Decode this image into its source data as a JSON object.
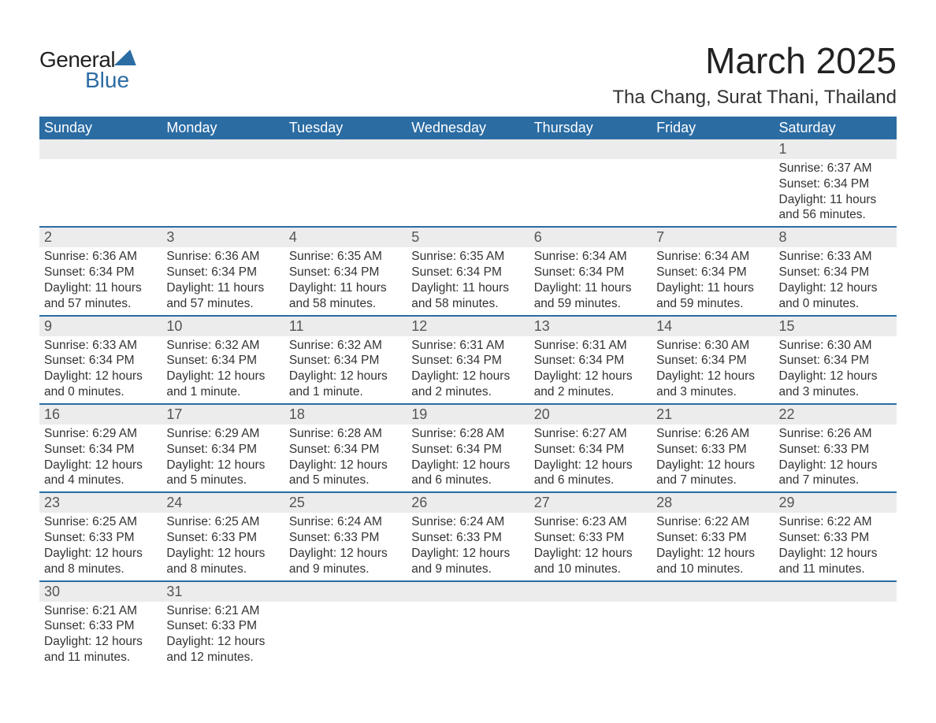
{
  "logo": {
    "line1": "General",
    "line2": "Blue"
  },
  "title": "March 2025",
  "location": "Tha Chang, Surat Thani, Thailand",
  "colors": {
    "header_bg": "#2b6ca3",
    "header_text": "#ffffff",
    "daynum_bg": "#ececec",
    "daynum_text": "#555555",
    "body_text": "#333333",
    "row_divider": "#2b6ca3",
    "page_bg": "#ffffff",
    "logo_accent": "#2b6ca3"
  },
  "typography": {
    "title_fontsize": 46,
    "location_fontsize": 24,
    "header_fontsize": 18,
    "daynum_fontsize": 18,
    "detail_fontsize": 15.5,
    "font_family": "Arial"
  },
  "weekday_headers": [
    "Sunday",
    "Monday",
    "Tuesday",
    "Wednesday",
    "Thursday",
    "Friday",
    "Saturday"
  ],
  "weeks": [
    [
      null,
      null,
      null,
      null,
      null,
      null,
      {
        "day": "1",
        "sunrise": "Sunrise: 6:37 AM",
        "sunset": "Sunset: 6:34 PM",
        "daylight1": "Daylight: 11 hours",
        "daylight2": "and 56 minutes."
      }
    ],
    [
      {
        "day": "2",
        "sunrise": "Sunrise: 6:36 AM",
        "sunset": "Sunset: 6:34 PM",
        "daylight1": "Daylight: 11 hours",
        "daylight2": "and 57 minutes."
      },
      {
        "day": "3",
        "sunrise": "Sunrise: 6:36 AM",
        "sunset": "Sunset: 6:34 PM",
        "daylight1": "Daylight: 11 hours",
        "daylight2": "and 57 minutes."
      },
      {
        "day": "4",
        "sunrise": "Sunrise: 6:35 AM",
        "sunset": "Sunset: 6:34 PM",
        "daylight1": "Daylight: 11 hours",
        "daylight2": "and 58 minutes."
      },
      {
        "day": "5",
        "sunrise": "Sunrise: 6:35 AM",
        "sunset": "Sunset: 6:34 PM",
        "daylight1": "Daylight: 11 hours",
        "daylight2": "and 58 minutes."
      },
      {
        "day": "6",
        "sunrise": "Sunrise: 6:34 AM",
        "sunset": "Sunset: 6:34 PM",
        "daylight1": "Daylight: 11 hours",
        "daylight2": "and 59 minutes."
      },
      {
        "day": "7",
        "sunrise": "Sunrise: 6:34 AM",
        "sunset": "Sunset: 6:34 PM",
        "daylight1": "Daylight: 11 hours",
        "daylight2": "and 59 minutes."
      },
      {
        "day": "8",
        "sunrise": "Sunrise: 6:33 AM",
        "sunset": "Sunset: 6:34 PM",
        "daylight1": "Daylight: 12 hours",
        "daylight2": "and 0 minutes."
      }
    ],
    [
      {
        "day": "9",
        "sunrise": "Sunrise: 6:33 AM",
        "sunset": "Sunset: 6:34 PM",
        "daylight1": "Daylight: 12 hours",
        "daylight2": "and 0 minutes."
      },
      {
        "day": "10",
        "sunrise": "Sunrise: 6:32 AM",
        "sunset": "Sunset: 6:34 PM",
        "daylight1": "Daylight: 12 hours",
        "daylight2": "and 1 minute."
      },
      {
        "day": "11",
        "sunrise": "Sunrise: 6:32 AM",
        "sunset": "Sunset: 6:34 PM",
        "daylight1": "Daylight: 12 hours",
        "daylight2": "and 1 minute."
      },
      {
        "day": "12",
        "sunrise": "Sunrise: 6:31 AM",
        "sunset": "Sunset: 6:34 PM",
        "daylight1": "Daylight: 12 hours",
        "daylight2": "and 2 minutes."
      },
      {
        "day": "13",
        "sunrise": "Sunrise: 6:31 AM",
        "sunset": "Sunset: 6:34 PM",
        "daylight1": "Daylight: 12 hours",
        "daylight2": "and 2 minutes."
      },
      {
        "day": "14",
        "sunrise": "Sunrise: 6:30 AM",
        "sunset": "Sunset: 6:34 PM",
        "daylight1": "Daylight: 12 hours",
        "daylight2": "and 3 minutes."
      },
      {
        "day": "15",
        "sunrise": "Sunrise: 6:30 AM",
        "sunset": "Sunset: 6:34 PM",
        "daylight1": "Daylight: 12 hours",
        "daylight2": "and 3 minutes."
      }
    ],
    [
      {
        "day": "16",
        "sunrise": "Sunrise: 6:29 AM",
        "sunset": "Sunset: 6:34 PM",
        "daylight1": "Daylight: 12 hours",
        "daylight2": "and 4 minutes."
      },
      {
        "day": "17",
        "sunrise": "Sunrise: 6:29 AM",
        "sunset": "Sunset: 6:34 PM",
        "daylight1": "Daylight: 12 hours",
        "daylight2": "and 5 minutes."
      },
      {
        "day": "18",
        "sunrise": "Sunrise: 6:28 AM",
        "sunset": "Sunset: 6:34 PM",
        "daylight1": "Daylight: 12 hours",
        "daylight2": "and 5 minutes."
      },
      {
        "day": "19",
        "sunrise": "Sunrise: 6:28 AM",
        "sunset": "Sunset: 6:34 PM",
        "daylight1": "Daylight: 12 hours",
        "daylight2": "and 6 minutes."
      },
      {
        "day": "20",
        "sunrise": "Sunrise: 6:27 AM",
        "sunset": "Sunset: 6:34 PM",
        "daylight1": "Daylight: 12 hours",
        "daylight2": "and 6 minutes."
      },
      {
        "day": "21",
        "sunrise": "Sunrise: 6:26 AM",
        "sunset": "Sunset: 6:33 PM",
        "daylight1": "Daylight: 12 hours",
        "daylight2": "and 7 minutes."
      },
      {
        "day": "22",
        "sunrise": "Sunrise: 6:26 AM",
        "sunset": "Sunset: 6:33 PM",
        "daylight1": "Daylight: 12 hours",
        "daylight2": "and 7 minutes."
      }
    ],
    [
      {
        "day": "23",
        "sunrise": "Sunrise: 6:25 AM",
        "sunset": "Sunset: 6:33 PM",
        "daylight1": "Daylight: 12 hours",
        "daylight2": "and 8 minutes."
      },
      {
        "day": "24",
        "sunrise": "Sunrise: 6:25 AM",
        "sunset": "Sunset: 6:33 PM",
        "daylight1": "Daylight: 12 hours",
        "daylight2": "and 8 minutes."
      },
      {
        "day": "25",
        "sunrise": "Sunrise: 6:24 AM",
        "sunset": "Sunset: 6:33 PM",
        "daylight1": "Daylight: 12 hours",
        "daylight2": "and 9 minutes."
      },
      {
        "day": "26",
        "sunrise": "Sunrise: 6:24 AM",
        "sunset": "Sunset: 6:33 PM",
        "daylight1": "Daylight: 12 hours",
        "daylight2": "and 9 minutes."
      },
      {
        "day": "27",
        "sunrise": "Sunrise: 6:23 AM",
        "sunset": "Sunset: 6:33 PM",
        "daylight1": "Daylight: 12 hours",
        "daylight2": "and 10 minutes."
      },
      {
        "day": "28",
        "sunrise": "Sunrise: 6:22 AM",
        "sunset": "Sunset: 6:33 PM",
        "daylight1": "Daylight: 12 hours",
        "daylight2": "and 10 minutes."
      },
      {
        "day": "29",
        "sunrise": "Sunrise: 6:22 AM",
        "sunset": "Sunset: 6:33 PM",
        "daylight1": "Daylight: 12 hours",
        "daylight2": "and 11 minutes."
      }
    ],
    [
      {
        "day": "30",
        "sunrise": "Sunrise: 6:21 AM",
        "sunset": "Sunset: 6:33 PM",
        "daylight1": "Daylight: 12 hours",
        "daylight2": "and 11 minutes."
      },
      {
        "day": "31",
        "sunrise": "Sunrise: 6:21 AM",
        "sunset": "Sunset: 6:33 PM",
        "daylight1": "Daylight: 12 hours",
        "daylight2": "and 12 minutes."
      },
      null,
      null,
      null,
      null,
      null
    ]
  ]
}
